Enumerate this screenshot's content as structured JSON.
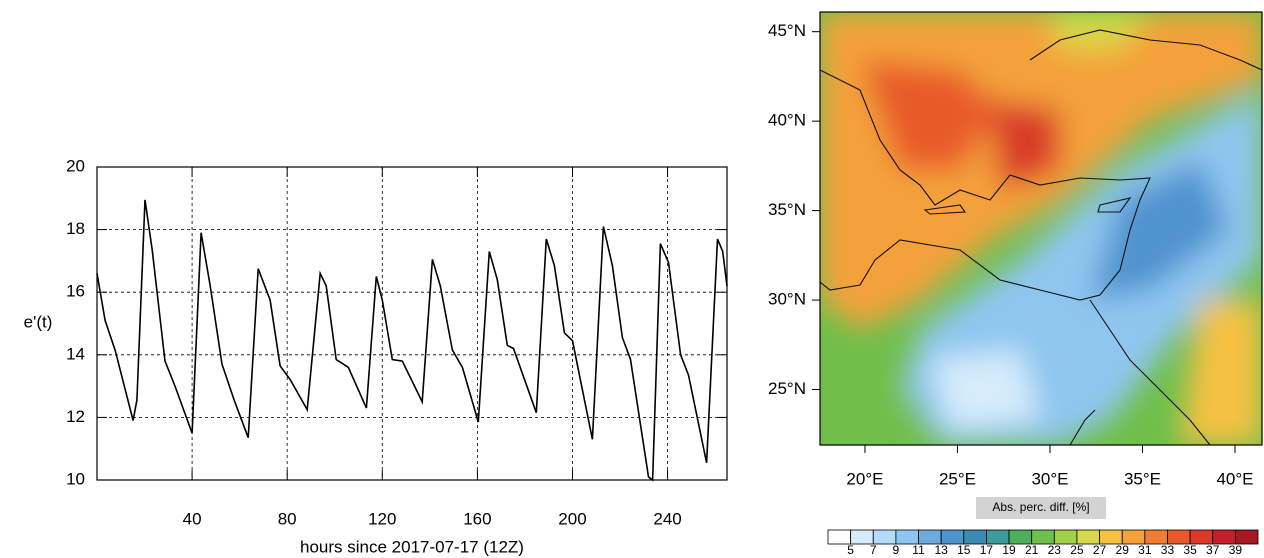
{
  "chart_data": [
    {
      "type": "line",
      "ylabel": "e'(t)",
      "xlabel": "hours since 2017-07-17 (12Z)",
      "xlim": [
        0,
        265
      ],
      "ylim": [
        10,
        20
      ],
      "xticks": [
        40,
        80,
        120,
        160,
        200,
        240
      ],
      "yticks": [
        10,
        12,
        14,
        16,
        18,
        20
      ],
      "grid": true,
      "x": [
        0,
        3.4,
        7.6,
        15.2,
        16.8,
        20.2,
        23.2,
        28.6,
        32.8,
        40,
        43.8,
        47.6,
        52.6,
        57.7,
        63.6,
        67.8,
        72.8,
        77,
        81.3,
        88.4,
        93.9,
        96.4,
        100.6,
        105.7,
        113.3,
        117.5,
        120,
        124.2,
        128.4,
        136.8,
        141.1,
        144.4,
        149.5,
        153.7,
        160.4,
        165,
        168.4,
        172.6,
        175.2,
        184.8,
        189,
        192.4,
        196.6,
        200,
        208.4,
        213,
        216.8,
        221,
        224.4,
        232,
        233.7,
        237,
        240.4,
        245.5,
        248.8,
        256.4,
        261,
        263.2,
        265
      ],
      "series": [
        {
          "name": "e'(t)",
          "color": "#000000",
          "values": [
            16.6,
            15.1,
            14.15,
            11.9,
            12.55,
            18.95,
            17.35,
            13.8,
            13.0,
            11.5,
            17.9,
            16.2,
            13.7,
            12.55,
            11.35,
            16.75,
            15.75,
            13.65,
            13.2,
            12.25,
            16.6,
            16.2,
            13.85,
            13.6,
            12.3,
            16.5,
            15.75,
            13.85,
            13.8,
            12.5,
            17.05,
            16.2,
            14.15,
            13.6,
            11.85,
            17.3,
            16.4,
            14.3,
            14.2,
            12.15,
            17.7,
            16.85,
            14.7,
            14.45,
            11.3,
            18.1,
            16.85,
            14.55,
            13.85,
            10.1,
            10.0,
            17.55,
            16.95,
            14.0,
            13.35,
            10.55,
            17.7,
            17.3,
            16.2
          ]
        }
      ]
    },
    {
      "type": "map",
      "xlim": [
        17.57,
        41.46
      ],
      "ylim": [
        21.9,
        46.1
      ],
      "xticks": [
        {
          "value": 20,
          "label": "20°E"
        },
        {
          "value": 25,
          "label": "25°E"
        },
        {
          "value": 30,
          "label": "30°E"
        },
        {
          "value": 35,
          "label": "35°E"
        },
        {
          "value": 40,
          "label": "40°E"
        }
      ],
      "yticks": [
        {
          "value": 25,
          "label": "25°N"
        },
        {
          "value": 30,
          "label": "30°N"
        },
        {
          "value": 35,
          "label": "35°N"
        },
        {
          "value": 40,
          "label": "40°N"
        },
        {
          "value": 45,
          "label": "45°N"
        }
      ],
      "colorbar": {
        "title": "Abs. perc. diff.  [%]",
        "levels": [
          5,
          7,
          9,
          11,
          13,
          15,
          17,
          19,
          21,
          23,
          25,
          27,
          29,
          31,
          33,
          35,
          37,
          39
        ],
        "colors": [
          "#ffffff",
          "#d6ecfb",
          "#b3dcf6",
          "#8ec6ef",
          "#6aace0",
          "#4f93cf",
          "#3d8ab0",
          "#3f9a9a",
          "#4daf5a",
          "#6fbf4a",
          "#a2cf4c",
          "#d8d94a",
          "#f5c143",
          "#f4a13b",
          "#ef7d33",
          "#e85a2c",
          "#d93a2a",
          "#c52128",
          "#a51a22"
        ]
      }
    }
  ]
}
